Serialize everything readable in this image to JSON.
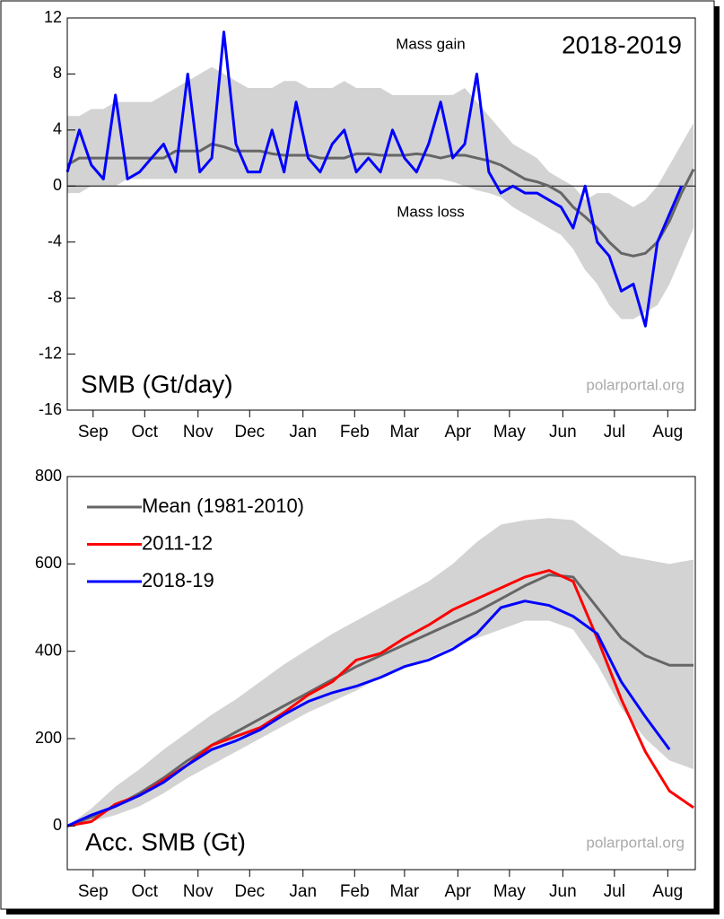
{
  "chart_data": [
    {
      "type": "line",
      "annotations": [
        "Mass gain",
        "Mass loss",
        "2018-2019",
        "SMB (Gt/day)",
        "polarportal.org"
      ],
      "xlim": [
        0,
        365
      ],
      "xticks": [
        {
          "value": 15,
          "label": "Sep"
        },
        {
          "value": 45,
          "label": "Oct"
        },
        {
          "value": 76,
          "label": "Nov"
        },
        {
          "value": 106,
          "label": "Dec"
        },
        {
          "value": 137,
          "label": "Jan"
        },
        {
          "value": 167,
          "label": "Feb"
        },
        {
          "value": 196,
          "label": "Mar"
        },
        {
          "value": 227,
          "label": "Apr"
        },
        {
          "value": 257,
          "label": "May"
        },
        {
          "value": 288,
          "label": "Jun"
        },
        {
          "value": 318,
          "label": "Jul"
        },
        {
          "value": 349,
          "label": "Aug"
        }
      ],
      "ylim": [
        -16,
        12
      ],
      "yticks": [
        -16,
        -12,
        -8,
        -4,
        0,
        4,
        8,
        12
      ],
      "zero_line": true,
      "legend": false,
      "x": [
        0,
        7,
        14,
        21,
        28,
        35,
        42,
        49,
        56,
        63,
        70,
        77,
        84,
        91,
        98,
        105,
        112,
        119,
        126,
        133,
        140,
        147,
        154,
        161,
        168,
        175,
        182,
        189,
        196,
        203,
        210,
        217,
        224,
        231,
        238,
        245,
        252,
        259,
        266,
        273,
        280,
        287,
        294,
        301,
        308,
        315,
        322,
        329,
        336,
        343,
        350,
        357,
        364
      ],
      "band": {
        "color": "#d3d3d3",
        "upper": [
          5,
          5,
          5.5,
          5.5,
          6,
          6,
          6,
          6,
          6.5,
          7,
          7.5,
          8,
          8.5,
          8,
          7.5,
          7,
          7,
          7,
          7.5,
          7.5,
          7,
          7,
          7,
          7.5,
          7,
          7,
          7,
          6.5,
          6.5,
          6.5,
          6.5,
          6.5,
          6.5,
          7,
          6,
          5,
          4,
          3,
          2.5,
          2,
          1,
          0.5,
          0,
          -1,
          -0.5,
          -0.5,
          -1,
          -1.5,
          -1,
          0,
          1.5,
          3,
          4.5
        ],
        "lower": [
          -0.5,
          -0.5,
          0,
          0,
          0,
          0.5,
          0.5,
          0.5,
          0.5,
          0.5,
          0.5,
          0.5,
          0.5,
          0.5,
          0.5,
          0.5,
          0.5,
          0.5,
          0.5,
          0.5,
          0.5,
          0.5,
          0.5,
          0.5,
          0.5,
          0.5,
          0.5,
          0.5,
          0.5,
          0.5,
          0.5,
          0.5,
          0.3,
          0,
          -0.3,
          -0.5,
          -0.8,
          -1.5,
          -2,
          -2.5,
          -3,
          -3.5,
          -4.5,
          -6,
          -7,
          -8.5,
          -9.5,
          -9.5,
          -9,
          -8.5,
          -7,
          -5,
          -3
        ]
      },
      "series": [
        {
          "color": "#666666",
          "values": [
            1.5,
            2,
            2,
            2,
            2,
            2,
            2,
            2,
            2,
            2.5,
            2.5,
            2.5,
            3,
            2.8,
            2.5,
            2.5,
            2.5,
            2.3,
            2.2,
            2.2,
            2.2,
            2,
            2,
            2,
            2.3,
            2.3,
            2.2,
            2.2,
            2.2,
            2.3,
            2.2,
            2,
            2.2,
            2.2,
            2,
            1.8,
            1.5,
            1,
            0.5,
            0.3,
            0,
            -0.5,
            -1.5,
            -2.2,
            -3,
            -4,
            -4.8,
            -5,
            -4.8,
            -4,
            -2.5,
            -0.5,
            1.2
          ]
        },
        {
          "color": "#0000ff",
          "values": [
            1,
            4,
            1.5,
            0.5,
            6.5,
            0.5,
            1,
            2,
            3,
            1,
            8,
            1,
            2,
            11,
            3,
            1,
            1,
            4,
            1,
            6,
            2,
            1,
            3,
            4,
            1,
            2,
            1,
            4,
            2,
            1,
            3,
            6,
            2,
            3,
            8,
            1,
            -0.5,
            0,
            -0.5,
            -0.5,
            -1,
            -1.5,
            -3,
            0,
            -4,
            -5,
            -7.5,
            -7,
            -10,
            -4,
            -2,
            0,
            null
          ]
        }
      ]
    },
    {
      "type": "line",
      "annotations": [
        "Acc. SMB (Gt)",
        "polarportal.org"
      ],
      "xlim": [
        0,
        365
      ],
      "xticks": [
        {
          "value": 15,
          "label": "Sep"
        },
        {
          "value": 45,
          "label": "Oct"
        },
        {
          "value": 76,
          "label": "Nov"
        },
        {
          "value": 106,
          "label": "Dec"
        },
        {
          "value": 137,
          "label": "Jan"
        },
        {
          "value": 167,
          "label": "Feb"
        },
        {
          "value": 196,
          "label": "Mar"
        },
        {
          "value": 227,
          "label": "Apr"
        },
        {
          "value": 257,
          "label": "May"
        },
        {
          "value": 288,
          "label": "Jun"
        },
        {
          "value": 318,
          "label": "Jul"
        },
        {
          "value": 349,
          "label": "Aug"
        }
      ],
      "ylim": [
        -100,
        800
      ],
      "yticks": [
        0,
        200,
        400,
        600,
        800
      ],
      "zero_line": false,
      "legend": true,
      "x": [
        0,
        14,
        28,
        42,
        56,
        70,
        84,
        98,
        112,
        126,
        140,
        154,
        168,
        182,
        196,
        210,
        224,
        238,
        252,
        266,
        280,
        294,
        308,
        322,
        336,
        350,
        364
      ],
      "band": {
        "color": "#d3d3d3",
        "upper": [
          0,
          40,
          90,
          130,
          175,
          215,
          255,
          290,
          330,
          370,
          405,
          440,
          470,
          500,
          530,
          560,
          600,
          650,
          690,
          700,
          705,
          700,
          660,
          620,
          610,
          600,
          610
        ],
        "lower": [
          0,
          10,
          25,
          45,
          75,
          110,
          140,
          170,
          200,
          230,
          260,
          285,
          310,
          340,
          365,
          385,
          410,
          430,
          450,
          470,
          470,
          450,
          370,
          270,
          200,
          150,
          130
        ]
      },
      "series": [
        {
          "name": "Mean (1981-2010)",
          "color": "#666666",
          "values": [
            0,
            20,
            45,
            75,
            110,
            150,
            185,
            215,
            245,
            275,
            305,
            335,
            365,
            390,
            415,
            440,
            465,
            490,
            520,
            550,
            575,
            570,
            500,
            430,
            390,
            368,
            368
          ]
        },
        {
          "name": "2011-12",
          "color": "#ff0000",
          "values": [
            0,
            10,
            50,
            70,
            105,
            140,
            185,
            205,
            225,
            260,
            300,
            330,
            380,
            395,
            430,
            460,
            495,
            520,
            545,
            570,
            585,
            560,
            430,
            290,
            170,
            80,
            42
          ]
        },
        {
          "name": "2018-19",
          "color": "#0000ff",
          "values": [
            0,
            25,
            45,
            70,
            100,
            140,
            175,
            195,
            220,
            255,
            285,
            305,
            320,
            340,
            365,
            380,
            405,
            440,
            500,
            515,
            505,
            480,
            440,
            330,
            250,
            175,
            null
          ]
        }
      ]
    }
  ]
}
